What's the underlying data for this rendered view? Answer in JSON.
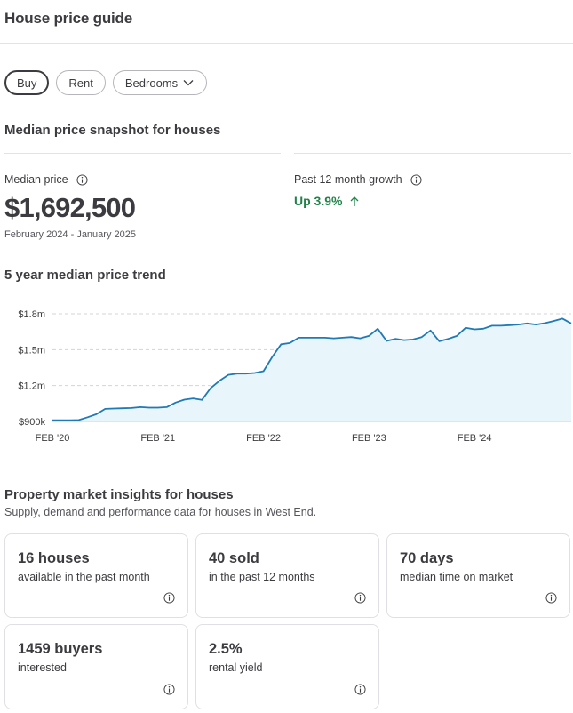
{
  "page": {
    "title": "House price guide"
  },
  "filters": {
    "buy": "Buy",
    "rent": "Rent",
    "bedrooms": "Bedrooms",
    "active": "buy"
  },
  "snapshot": {
    "heading": "Median price snapshot for houses",
    "median_label": "Median price",
    "median_value": "$1,692,500",
    "date_range": "February 2024 - January 2025",
    "growth_label": "Past 12 month growth",
    "growth_value": "Up 3.9%"
  },
  "trend": {
    "heading": "5 year median price trend"
  },
  "chart_data": {
    "type": "area",
    "title": "",
    "xlabel": "",
    "ylabel": "",
    "ylim": [
      900000,
      1800000
    ],
    "yticks": [
      900000,
      1200000,
      1500000,
      1800000
    ],
    "ytick_labels": [
      "$900k",
      "$1.2m",
      "$1.5m",
      "$1.8m"
    ],
    "xtick_labels": [
      "FEB '20",
      "FEB '21",
      "FEB '22",
      "FEB '23",
      "FEB '24"
    ],
    "xtick_positions": [
      0,
      12,
      24,
      36,
      48
    ],
    "xlim": [
      0,
      59
    ],
    "grid": true,
    "line_color": "#1f7ab5",
    "fill_color": "#e8f6fb",
    "series": [
      {
        "values": [
          910000,
          910000,
          910000,
          912000,
          935000,
          960000,
          1005000,
          1008000,
          1010000,
          1012000,
          1020000,
          1015000,
          1015000,
          1020000,
          1058000,
          1082000,
          1093000,
          1080000,
          1180000,
          1240000,
          1290000,
          1300000,
          1300000,
          1305000,
          1320000,
          1440000,
          1545000,
          1555000,
          1600000,
          1600000,
          1600000,
          1600000,
          1595000,
          1600000,
          1605000,
          1595000,
          1615000,
          1675000,
          1573000,
          1590000,
          1580000,
          1585000,
          1605000,
          1660000,
          1570000,
          1590000,
          1615000,
          1683000,
          1670000,
          1675000,
          1700000,
          1700000,
          1705000,
          1710000,
          1720000,
          1710000,
          1722000,
          1740000,
          1760000,
          1720000
        ]
      }
    ]
  },
  "insights": {
    "heading": "Property market insights for houses",
    "subheading": "Supply, demand and performance data for houses in West End.",
    "cards": [
      {
        "value": "16 houses",
        "label": "available in the past month"
      },
      {
        "value": "40 sold",
        "label": "in the past 12 months"
      },
      {
        "value": "70 days",
        "label": "median time on market"
      },
      {
        "value": "1459 buyers",
        "label": "interested"
      },
      {
        "value": "2.5%",
        "label": "rental yield"
      }
    ]
  },
  "icons": {
    "info": "info-circle-icon",
    "chevron": "chevron-down-icon",
    "growth_arrow": "arrow-up-icon"
  },
  "colors": {
    "text": "#3c3c40",
    "growth": "#21824a",
    "line": "#1f7ab5"
  }
}
